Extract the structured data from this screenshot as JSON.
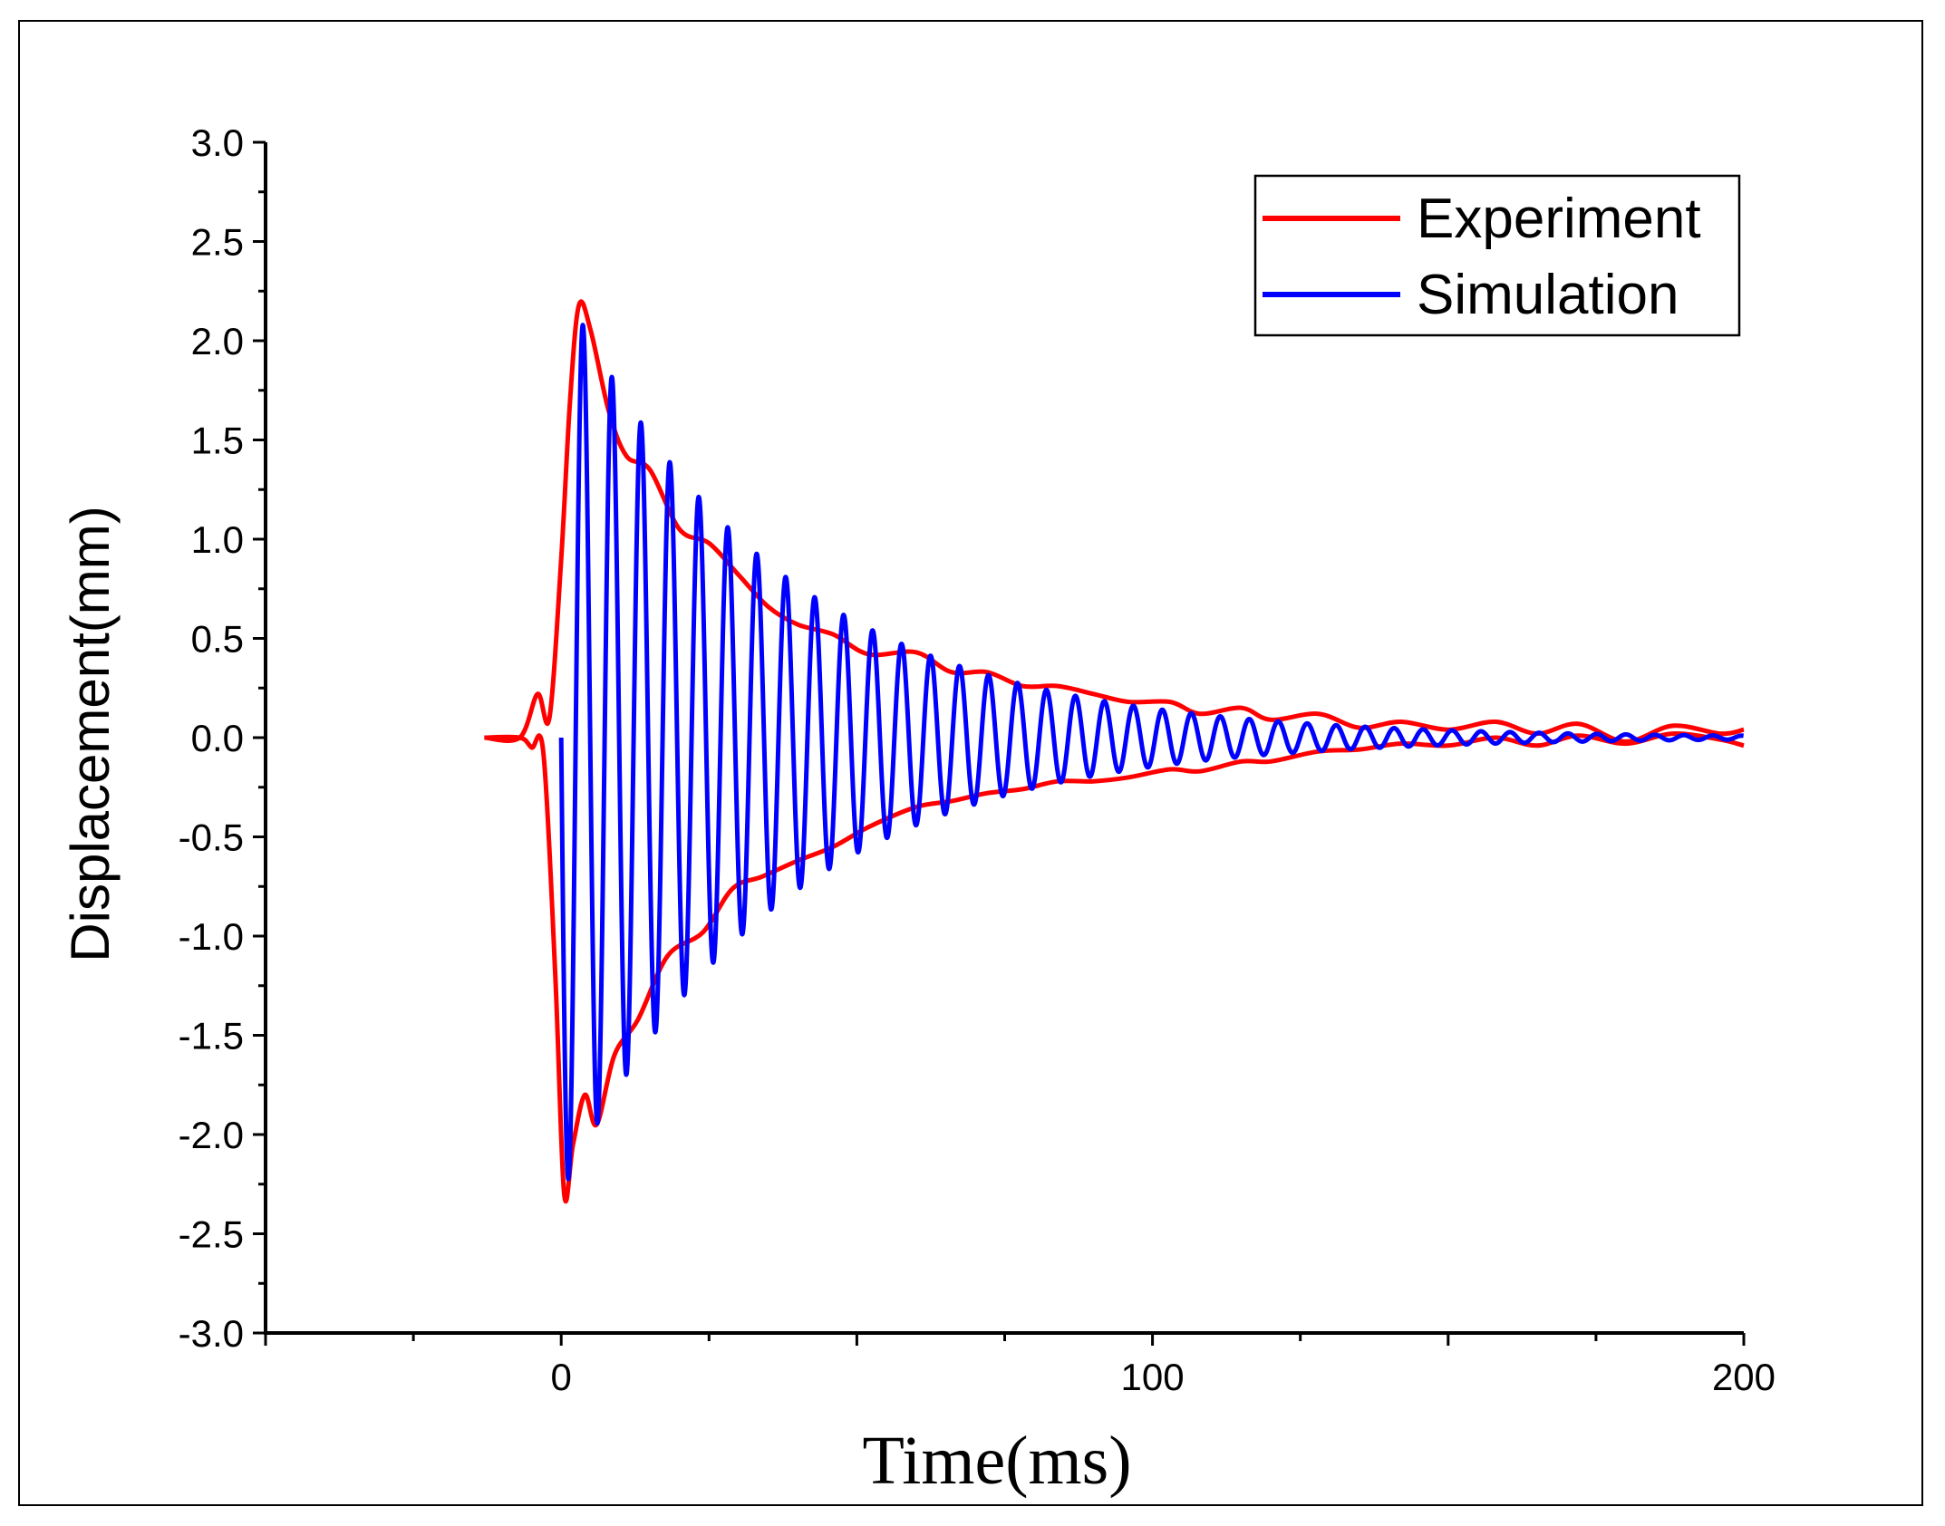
{
  "chart_data": {
    "type": "line",
    "title": "",
    "xlabel": "Time(ms)",
    "ylabel": "Displacement(mm)",
    "xlim": [
      -50,
      200
    ],
    "ylim": [
      -3.0,
      3.0
    ],
    "x_ticks": [
      0,
      100,
      200
    ],
    "x_tick_labels": [
      "0",
      "100",
      "200"
    ],
    "x_minor_step": 25,
    "y_ticks": [
      -3.0,
      -2.5,
      -2.0,
      -1.5,
      -1.0,
      -0.5,
      0.0,
      0.5,
      1.0,
      1.5,
      2.0,
      2.5,
      3.0
    ],
    "y_tick_labels": [
      "-3.0",
      "-2.5",
      "-2.0",
      "-1.5",
      "-1.0",
      "-0.5",
      "0.0",
      "0.5",
      "1.0",
      "1.5",
      "2.0",
      "2.5",
      "3.0"
    ],
    "legend_position": "top-right",
    "grid": false,
    "series": [
      {
        "name": "Experiment",
        "color": "#ff0000",
        "description": "Upper and lower decaying envelope traces with a small precursor near t = -5 ms",
        "upper_envelope": {
          "x": [
            -13,
            -7,
            -4,
            -2,
            0,
            1.5,
            3,
            5,
            8,
            11,
            15,
            20,
            25,
            30,
            35,
            40,
            46,
            52,
            60,
            66,
            72,
            78,
            84,
            90,
            96,
            103,
            108,
            115,
            120,
            128,
            135,
            142,
            150,
            158,
            165,
            172,
            180,
            188,
            196,
            200
          ],
          "y": [
            0.0,
            0.0,
            0.22,
            0.1,
            0.9,
            1.7,
            2.18,
            2.05,
            1.65,
            1.42,
            1.35,
            1.05,
            0.98,
            0.82,
            0.66,
            0.57,
            0.52,
            0.42,
            0.43,
            0.33,
            0.33,
            0.26,
            0.26,
            0.22,
            0.18,
            0.18,
            0.12,
            0.15,
            0.09,
            0.12,
            0.05,
            0.08,
            0.04,
            0.08,
            0.02,
            0.07,
            -0.02,
            0.06,
            0.02,
            0.04
          ]
        },
        "lower_envelope": {
          "x": [
            -13,
            -7,
            -5,
            -3,
            -1,
            0.5,
            2,
            4,
            6,
            9,
            13,
            18,
            24,
            29,
            34,
            40,
            46,
            52,
            60,
            66,
            72,
            78,
            84,
            90,
            96,
            103,
            108,
            115,
            120,
            128,
            135,
            142,
            150,
            158,
            165,
            172,
            180,
            188,
            196,
            200
          ],
          "y": [
            0.0,
            0.0,
            -0.05,
            -0.08,
            -1.2,
            -2.3,
            -2.05,
            -1.8,
            -1.95,
            -1.6,
            -1.42,
            -1.1,
            -0.98,
            -0.76,
            -0.7,
            -0.62,
            -0.55,
            -0.45,
            -0.35,
            -0.32,
            -0.28,
            -0.26,
            -0.22,
            -0.22,
            -0.2,
            -0.16,
            -0.17,
            -0.12,
            -0.12,
            -0.07,
            -0.06,
            -0.03,
            -0.04,
            0.0,
            -0.04,
            0.01,
            -0.03,
            0.02,
            -0.01,
            -0.04
          ]
        }
      },
      {
        "name": "Simulation",
        "color": "#0000ff",
        "description": "Damped oscillation starting at t = 0",
        "start_x": 0,
        "end_x": 200,
        "period_ms": 4.9,
        "initial_trough": -2.3,
        "peaks": [
          {
            "x": 3,
            "y": 2.15
          },
          {
            "x": 8.5,
            "y": 1.85
          },
          {
            "x": 13.5,
            "y": 1.6
          },
          {
            "x": 18,
            "y": 1.4
          },
          {
            "x": 22.5,
            "y": 1.25
          },
          {
            "x": 27.5,
            "y": 1.1
          },
          {
            "x": 32,
            "y": 0.95
          },
          {
            "x": 37,
            "y": 0.83
          },
          {
            "x": 42,
            "y": 0.72
          },
          {
            "x": 46.5,
            "y": 0.64
          },
          {
            "x": 51.5,
            "y": 0.56
          },
          {
            "x": 56,
            "y": 0.49
          },
          {
            "x": 61,
            "y": 0.43
          },
          {
            "x": 66,
            "y": 0.37
          },
          {
            "x": 71,
            "y": 0.32
          },
          {
            "x": 75.5,
            "y": 0.28
          },
          {
            "x": 80.5,
            "y": 0.24
          },
          {
            "x": 85,
            "y": 0.21
          },
          {
            "x": 90,
            "y": 0.18
          },
          {
            "x": 95,
            "y": 0.15
          },
          {
            "x": 100,
            "y": 0.13
          }
        ],
        "decay_rate_per_ms": 0.0275,
        "end_amplitude": 0.01
      }
    ]
  }
}
